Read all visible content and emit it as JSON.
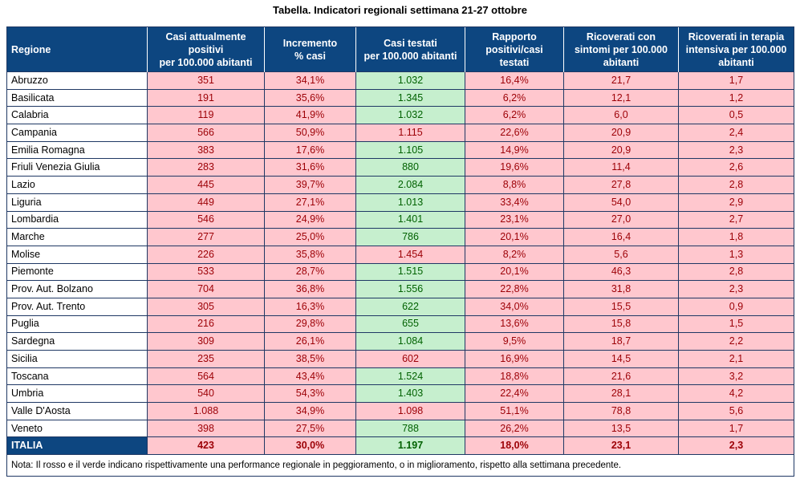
{
  "title": "Tabella. Indicatori regionali settimana 21-27 ottobre",
  "headers": [
    "Regione",
    "Casi attualmente positivi per 100.000 abitanti",
    "Incremento % casi",
    "Casi testati per 100.000 abitanti",
    "Rapporto positivi/casi testati",
    "Ricoverati con sintomi per 100.000 abitanti",
    "Ricoverati in terapia intensiva per 100.000 abitanti"
  ],
  "header_lines": [
    [
      "Regione"
    ],
    [
      "Casi attualmente",
      "positivi",
      "per 100.000 abitanti"
    ],
    [
      "Incremento",
      "% casi"
    ],
    [
      "Casi testati",
      "per 100.000 abitanti"
    ],
    [
      "Rapporto",
      "positivi/casi",
      "testati"
    ],
    [
      "Ricoverati con",
      "sintomi per 100.000",
      "abitanti"
    ],
    [
      "Ricoverati in terapia",
      "intensiva per 100.000",
      "abitanti"
    ]
  ],
  "status_colors": {
    "red_bg": "#ffc7ce",
    "red_text": "#9c0006",
    "green_bg": "#c6efce",
    "green_text": "#006100",
    "header_bg": "#0d4680"
  },
  "rows": [
    {
      "region": "Abruzzo",
      "values": [
        "351",
        "34,1%",
        "1.032",
        "16,4%",
        "21,7",
        "1,7"
      ],
      "status": [
        "red",
        "red",
        "green",
        "red",
        "red",
        "red"
      ]
    },
    {
      "region": "Basilicata",
      "values": [
        "191",
        "35,6%",
        "1.345",
        "6,2%",
        "12,1",
        "1,2"
      ],
      "status": [
        "red",
        "red",
        "green",
        "red",
        "red",
        "red"
      ]
    },
    {
      "region": "Calabria",
      "values": [
        "119",
        "41,9%",
        "1.032",
        "6,2%",
        "6,0",
        "0,5"
      ],
      "status": [
        "red",
        "red",
        "green",
        "red",
        "red",
        "red"
      ]
    },
    {
      "region": "Campania",
      "values": [
        "566",
        "50,9%",
        "1.115",
        "22,6%",
        "20,9",
        "2,4"
      ],
      "status": [
        "red",
        "red",
        "red",
        "red",
        "red",
        "red"
      ]
    },
    {
      "region": "Emilia Romagna",
      "values": [
        "383",
        "17,6%",
        "1.105",
        "14,9%",
        "20,9",
        "2,3"
      ],
      "status": [
        "red",
        "red",
        "green",
        "red",
        "red",
        "red"
      ]
    },
    {
      "region": "Friuli Venezia Giulia",
      "values": [
        "283",
        "31,6%",
        "880",
        "19,6%",
        "11,4",
        "2,6"
      ],
      "status": [
        "red",
        "red",
        "green",
        "red",
        "red",
        "red"
      ]
    },
    {
      "region": "Lazio",
      "values": [
        "445",
        "39,7%",
        "2.084",
        "8,8%",
        "27,8",
        "2,8"
      ],
      "status": [
        "red",
        "red",
        "green",
        "red",
        "red",
        "red"
      ]
    },
    {
      "region": "Liguria",
      "values": [
        "449",
        "27,1%",
        "1.013",
        "33,4%",
        "54,0",
        "2,9"
      ],
      "status": [
        "red",
        "red",
        "green",
        "red",
        "red",
        "red"
      ]
    },
    {
      "region": "Lombardia",
      "values": [
        "546",
        "24,9%",
        "1.401",
        "23,1%",
        "27,0",
        "2,7"
      ],
      "status": [
        "red",
        "red",
        "green",
        "red",
        "red",
        "red"
      ]
    },
    {
      "region": "Marche",
      "values": [
        "277",
        "25,0%",
        "786",
        "20,1%",
        "16,4",
        "1,8"
      ],
      "status": [
        "red",
        "red",
        "green",
        "red",
        "red",
        "red"
      ]
    },
    {
      "region": "Molise",
      "values": [
        "226",
        "35,8%",
        "1.454",
        "8,2%",
        "5,6",
        "1,3"
      ],
      "status": [
        "red",
        "red",
        "red",
        "red",
        "red",
        "red"
      ]
    },
    {
      "region": "Piemonte",
      "values": [
        "533",
        "28,7%",
        "1.515",
        "20,1%",
        "46,3",
        "2,8"
      ],
      "status": [
        "red",
        "red",
        "green",
        "red",
        "red",
        "red"
      ]
    },
    {
      "region": "Prov. Aut. Bolzano",
      "values": [
        "704",
        "36,8%",
        "1.556",
        "22,8%",
        "31,8",
        "2,3"
      ],
      "status": [
        "red",
        "red",
        "green",
        "red",
        "red",
        "red"
      ]
    },
    {
      "region": "Prov. Aut. Trento",
      "values": [
        "305",
        "16,3%",
        "622",
        "34,0%",
        "15,5",
        "0,9"
      ],
      "status": [
        "red",
        "red",
        "green",
        "red",
        "red",
        "red"
      ]
    },
    {
      "region": "Puglia",
      "values": [
        "216",
        "29,8%",
        "655",
        "13,6%",
        "15,8",
        "1,5"
      ],
      "status": [
        "red",
        "red",
        "green",
        "red",
        "red",
        "red"
      ]
    },
    {
      "region": "Sardegna",
      "values": [
        "309",
        "26,1%",
        "1.084",
        "9,5%",
        "18,7",
        "2,2"
      ],
      "status": [
        "red",
        "red",
        "green",
        "red",
        "red",
        "red"
      ]
    },
    {
      "region": "Sicilia",
      "values": [
        "235",
        "38,5%",
        "602",
        "16,9%",
        "14,5",
        "2,1"
      ],
      "status": [
        "red",
        "red",
        "red",
        "red",
        "red",
        "red"
      ]
    },
    {
      "region": "Toscana",
      "values": [
        "564",
        "43,4%",
        "1.524",
        "18,8%",
        "21,6",
        "3,2"
      ],
      "status": [
        "red",
        "red",
        "green",
        "red",
        "red",
        "red"
      ]
    },
    {
      "region": "Umbria",
      "values": [
        "540",
        "54,3%",
        "1.403",
        "22,4%",
        "28,1",
        "4,2"
      ],
      "status": [
        "red",
        "red",
        "green",
        "red",
        "red",
        "red"
      ]
    },
    {
      "region": "Valle D'Aosta",
      "values": [
        "1.088",
        "34,9%",
        "1.098",
        "51,1%",
        "78,8",
        "5,6"
      ],
      "status": [
        "red",
        "red",
        "red",
        "red",
        "red",
        "red"
      ]
    },
    {
      "region": "Veneto",
      "values": [
        "398",
        "27,5%",
        "788",
        "26,2%",
        "13,5",
        "1,7"
      ],
      "status": [
        "red",
        "red",
        "green",
        "red",
        "red",
        "red"
      ]
    }
  ],
  "total": {
    "region": "ITALIA",
    "values": [
      "423",
      "30,0%",
      "1.197",
      "18,0%",
      "23,1",
      "2,3"
    ],
    "status": [
      "red",
      "red",
      "green",
      "red",
      "red",
      "red"
    ]
  },
  "note": "Nota: Il rosso e il verde indicano rispettivamente una performance regionale in peggioramento, o in miglioramento, rispetto alla settimana precedente."
}
